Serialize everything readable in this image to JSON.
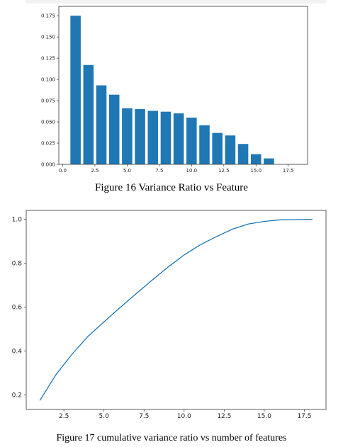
{
  "figures": [
    {
      "caption": "Figure 16 Variance Ratio vs Feature",
      "chart_data": {
        "type": "bar",
        "x": [
          1,
          2,
          3,
          4,
          5,
          6,
          7,
          8,
          9,
          10,
          11,
          12,
          13,
          14,
          15,
          16,
          17,
          18
        ],
        "values": [
          0.175,
          0.117,
          0.093,
          0.082,
          0.066,
          0.065,
          0.063,
          0.062,
          0.06,
          0.055,
          0.046,
          0.037,
          0.034,
          0.024,
          0.012,
          0.007,
          0.0,
          0.0
        ],
        "xticks": [
          "0.0",
          "2.5",
          "5.0",
          "7.5",
          "10.0",
          "12.5",
          "15.0",
          "17.5"
        ],
        "yticks": [
          "0.000",
          "0.025",
          "0.050",
          "0.075",
          "0.100",
          "0.125",
          "0.150",
          "0.175"
        ],
        "xlim": [
          -0.3,
          19.0
        ],
        "ylim": [
          0,
          0.186
        ],
        "bar_color": "#1f77b4",
        "grid": false
      }
    },
    {
      "caption": "Figure 17 cumulative variance ratio vs number of features",
      "chart_data": {
        "type": "line",
        "x": [
          1,
          2,
          3,
          4,
          5,
          6,
          7,
          8,
          9,
          10,
          11,
          12,
          13,
          14,
          15,
          16,
          17,
          18
        ],
        "values": [
          0.175,
          0.292,
          0.385,
          0.467,
          0.533,
          0.598,
          0.661,
          0.723,
          0.783,
          0.838,
          0.884,
          0.921,
          0.955,
          0.979,
          0.991,
          0.998,
          0.999,
          1.0
        ],
        "xticks": [
          "2.5",
          "5.0",
          "7.5",
          "10.0",
          "12.5",
          "15.0",
          "17.5"
        ],
        "yticks": [
          "0.2",
          "0.4",
          "0.6",
          "0.8",
          "1.0"
        ],
        "xlim": [
          0.15,
          18.85
        ],
        "ylim": [
          0.134,
          1.041
        ],
        "line_color": "#1f77b4",
        "grid": false
      }
    }
  ]
}
